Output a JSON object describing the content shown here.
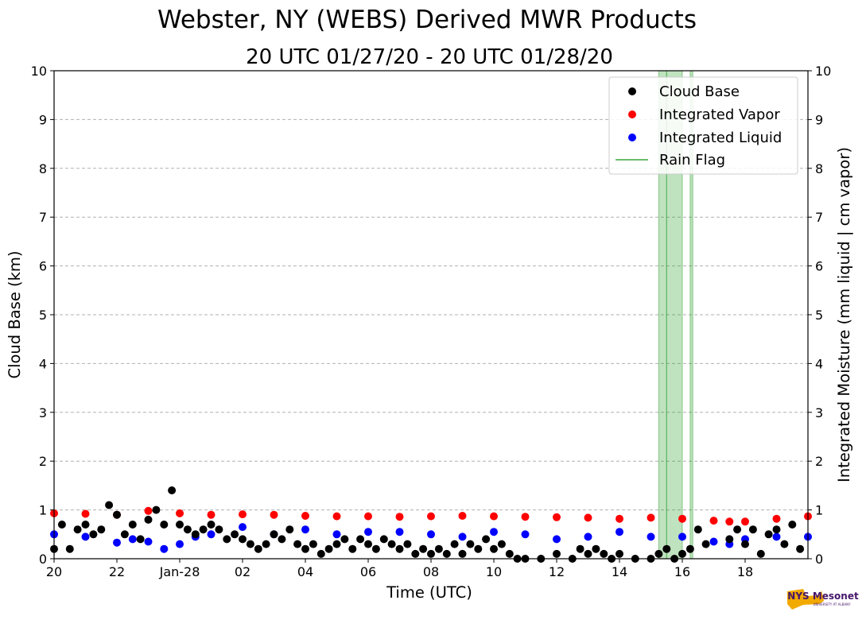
{
  "chart_data": {
    "type": "scatter",
    "title": "Webster, NY (WEBS) Derived MWR Products",
    "subtitle": "20 UTC 01/27/20 - 20 UTC 01/28/20",
    "xlabel": "Time (UTC)",
    "ylabel_left": "Cloud Base (km)",
    "ylabel_right": "Integrated Moisture (mm liquid | cm vapor)",
    "x_range_hours_after_20utc_jan27": [
      0,
      24
    ],
    "xlim": [
      "2020-01-27 20:00 UTC",
      "2020-01-28 20:00 UTC"
    ],
    "ylim": [
      0,
      10
    ],
    "y_ticks": [
      "0",
      "1",
      "2",
      "3",
      "4",
      "5",
      "6",
      "7",
      "8",
      "9",
      "10"
    ],
    "x_ticks": [
      {
        "label": "20",
        "time": "2020-01-27 20:00"
      },
      {
        "label": "22",
        "time": "2020-01-27 22:00"
      },
      {
        "label": "Jan-28",
        "time": "2020-01-28 00:00"
      },
      {
        "label": "02",
        "time": "2020-01-28 02:00"
      },
      {
        "label": "04",
        "time": "2020-01-28 04:00"
      },
      {
        "label": "06",
        "time": "2020-01-28 06:00"
      },
      {
        "label": "08",
        "time": "2020-01-28 08:00"
      },
      {
        "label": "10",
        "time": "2020-01-28 10:00"
      },
      {
        "label": "12",
        "time": "2020-01-28 12:00"
      },
      {
        "label": "14",
        "time": "2020-01-28 14:00"
      },
      {
        "label": "16",
        "time": "2020-01-28 16:00"
      },
      {
        "label": "18",
        "time": "2020-01-28 18:00"
      }
    ],
    "grid": "horizontal dashed",
    "legend_placement": "top-right",
    "series": [
      {
        "name": "Cloud Base",
        "color": "#000000",
        "marker": "dot",
        "points": [
          [
            "2020-01-27 20:00",
            0.2
          ],
          [
            "2020-01-27 20:15",
            0.7
          ],
          [
            "2020-01-27 20:30",
            0.2
          ],
          [
            "2020-01-27 20:45",
            0.6
          ],
          [
            "2020-01-27 21:00",
            0.7
          ],
          [
            "2020-01-27 21:15",
            0.5
          ],
          [
            "2020-01-27 21:30",
            0.6
          ],
          [
            "2020-01-27 21:45",
            1.1
          ],
          [
            "2020-01-27 22:00",
            0.9
          ],
          [
            "2020-01-27 22:15",
            0.5
          ],
          [
            "2020-01-27 22:30",
            0.7
          ],
          [
            "2020-01-27 22:45",
            0.4
          ],
          [
            "2020-01-27 23:00",
            0.8
          ],
          [
            "2020-01-27 23:15",
            1.0
          ],
          [
            "2020-01-27 23:30",
            0.7
          ],
          [
            "2020-01-27 23:45",
            1.4
          ],
          [
            "2020-01-28 00:00",
            0.7
          ],
          [
            "2020-01-28 00:15",
            0.6
          ],
          [
            "2020-01-28 00:30",
            0.5
          ],
          [
            "2020-01-28 00:45",
            0.6
          ],
          [
            "2020-01-28 01:00",
            0.7
          ],
          [
            "2020-01-28 01:15",
            0.6
          ],
          [
            "2020-01-28 01:30",
            0.4
          ],
          [
            "2020-01-28 01:45",
            0.5
          ],
          [
            "2020-01-28 02:00",
            0.4
          ],
          [
            "2020-01-28 02:15",
            0.3
          ],
          [
            "2020-01-28 02:30",
            0.2
          ],
          [
            "2020-01-28 02:45",
            0.3
          ],
          [
            "2020-01-28 03:00",
            0.5
          ],
          [
            "2020-01-28 03:15",
            0.4
          ],
          [
            "2020-01-28 03:30",
            0.6
          ],
          [
            "2020-01-28 03:45",
            0.3
          ],
          [
            "2020-01-28 04:00",
            0.2
          ],
          [
            "2020-01-28 04:15",
            0.3
          ],
          [
            "2020-01-28 04:30",
            0.1
          ],
          [
            "2020-01-28 04:45",
            0.2
          ],
          [
            "2020-01-28 05:00",
            0.3
          ],
          [
            "2020-01-28 05:15",
            0.4
          ],
          [
            "2020-01-28 05:30",
            0.2
          ],
          [
            "2020-01-28 05:45",
            0.4
          ],
          [
            "2020-01-28 06:00",
            0.3
          ],
          [
            "2020-01-28 06:15",
            0.2
          ],
          [
            "2020-01-28 06:30",
            0.4
          ],
          [
            "2020-01-28 06:45",
            0.3
          ],
          [
            "2020-01-28 07:00",
            0.2
          ],
          [
            "2020-01-28 07:15",
            0.3
          ],
          [
            "2020-01-28 07:30",
            0.1
          ],
          [
            "2020-01-28 07:45",
            0.2
          ],
          [
            "2020-01-28 08:00",
            0.1
          ],
          [
            "2020-01-28 08:15",
            0.2
          ],
          [
            "2020-01-28 08:30",
            0.1
          ],
          [
            "2020-01-28 08:45",
            0.3
          ],
          [
            "2020-01-28 09:00",
            0.1
          ],
          [
            "2020-01-28 09:15",
            0.3
          ],
          [
            "2020-01-28 09:30",
            0.2
          ],
          [
            "2020-01-28 09:45",
            0.4
          ],
          [
            "2020-01-28 10:00",
            0.2
          ],
          [
            "2020-01-28 10:15",
            0.3
          ],
          [
            "2020-01-28 10:30",
            0.1
          ],
          [
            "2020-01-28 10:45",
            0.0
          ],
          [
            "2020-01-28 11:00",
            0.0
          ],
          [
            "2020-01-28 11:30",
            0.0
          ],
          [
            "2020-01-28 12:00",
            0.1
          ],
          [
            "2020-01-28 12:30",
            0.0
          ],
          [
            "2020-01-28 12:45",
            0.2
          ],
          [
            "2020-01-28 13:00",
            0.1
          ],
          [
            "2020-01-28 13:15",
            0.2
          ],
          [
            "2020-01-28 13:30",
            0.1
          ],
          [
            "2020-01-28 13:45",
            0.0
          ],
          [
            "2020-01-28 14:00",
            0.1
          ],
          [
            "2020-01-28 14:30",
            0.0
          ],
          [
            "2020-01-28 15:00",
            0.0
          ],
          [
            "2020-01-28 15:15",
            0.1
          ],
          [
            "2020-01-28 15:30",
            0.2
          ],
          [
            "2020-01-28 15:45",
            0.0
          ],
          [
            "2020-01-28 16:00",
            0.1
          ],
          [
            "2020-01-28 16:15",
            0.2
          ],
          [
            "2020-01-28 16:30",
            0.6
          ],
          [
            "2020-01-28 16:45",
            0.3
          ],
          [
            "2020-01-28 17:30",
            0.4
          ],
          [
            "2020-01-28 17:45",
            0.6
          ],
          [
            "2020-01-28 18:00",
            0.3
          ],
          [
            "2020-01-28 18:15",
            0.6
          ],
          [
            "2020-01-28 18:30",
            0.1
          ],
          [
            "2020-01-28 18:45",
            0.5
          ],
          [
            "2020-01-28 19:00",
            0.6
          ],
          [
            "2020-01-28 19:15",
            0.3
          ],
          [
            "2020-01-28 19:30",
            0.7
          ],
          [
            "2020-01-28 19:45",
            0.2
          ]
        ]
      },
      {
        "name": "Integrated Vapor",
        "color": "#ff0000",
        "marker": "dot",
        "points": [
          [
            "2020-01-27 20:00",
            0.93
          ],
          [
            "2020-01-27 21:00",
            0.92
          ],
          [
            "2020-01-27 22:00",
            0.9
          ],
          [
            "2020-01-27 23:00",
            0.98
          ],
          [
            "2020-01-28 00:00",
            0.93
          ],
          [
            "2020-01-28 01:00",
            0.9
          ],
          [
            "2020-01-28 02:00",
            0.91
          ],
          [
            "2020-01-28 03:00",
            0.9
          ],
          [
            "2020-01-28 04:00",
            0.88
          ],
          [
            "2020-01-28 05:00",
            0.87
          ],
          [
            "2020-01-28 06:00",
            0.87
          ],
          [
            "2020-01-28 07:00",
            0.86
          ],
          [
            "2020-01-28 08:00",
            0.87
          ],
          [
            "2020-01-28 09:00",
            0.88
          ],
          [
            "2020-01-28 10:00",
            0.87
          ],
          [
            "2020-01-28 11:00",
            0.86
          ],
          [
            "2020-01-28 12:00",
            0.85
          ],
          [
            "2020-01-28 13:00",
            0.84
          ],
          [
            "2020-01-28 14:00",
            0.82
          ],
          [
            "2020-01-28 15:00",
            0.84
          ],
          [
            "2020-01-28 16:00",
            0.82
          ],
          [
            "2020-01-28 17:00",
            0.78
          ],
          [
            "2020-01-28 17:30",
            0.76
          ],
          [
            "2020-01-28 18:00",
            0.76
          ],
          [
            "2020-01-28 19:00",
            0.82
          ],
          [
            "2020-01-28 20:00",
            0.87
          ]
        ]
      },
      {
        "name": "Integrated Liquid",
        "color": "#0000ff",
        "marker": "dot",
        "points": [
          [
            "2020-01-27 20:00",
            0.5
          ],
          [
            "2020-01-27 21:00",
            0.45
          ],
          [
            "2020-01-27 22:00",
            0.33
          ],
          [
            "2020-01-27 22:30",
            0.4
          ],
          [
            "2020-01-27 23:00",
            0.35
          ],
          [
            "2020-01-27 23:30",
            0.2
          ],
          [
            "2020-01-28 00:00",
            0.3
          ],
          [
            "2020-01-28 00:30",
            0.45
          ],
          [
            "2020-01-28 01:00",
            0.5
          ],
          [
            "2020-01-28 02:00",
            0.65
          ],
          [
            "2020-01-28 03:00",
            0.5
          ],
          [
            "2020-01-28 04:00",
            0.6
          ],
          [
            "2020-01-28 05:00",
            0.5
          ],
          [
            "2020-01-28 06:00",
            0.55
          ],
          [
            "2020-01-28 07:00",
            0.55
          ],
          [
            "2020-01-28 08:00",
            0.5
          ],
          [
            "2020-01-28 09:00",
            0.45
          ],
          [
            "2020-01-28 10:00",
            0.55
          ],
          [
            "2020-01-28 11:00",
            0.5
          ],
          [
            "2020-01-28 12:00",
            0.4
          ],
          [
            "2020-01-28 13:00",
            0.45
          ],
          [
            "2020-01-28 14:00",
            0.55
          ],
          [
            "2020-01-28 15:00",
            0.45
          ],
          [
            "2020-01-28 16:00",
            0.45
          ],
          [
            "2020-01-28 17:00",
            0.35
          ],
          [
            "2020-01-28 17:30",
            0.3
          ],
          [
            "2020-01-28 18:00",
            0.4
          ],
          [
            "2020-01-28 19:00",
            0.45
          ],
          [
            "2020-01-28 20:00",
            0.45
          ]
        ]
      }
    ],
    "rain_flag": {
      "name": "Rain Flag",
      "color": "#2ca02c",
      "intervals": [
        [
          "2020-01-28 15:15",
          "2020-01-28 15:30"
        ],
        [
          "2020-01-28 15:30",
          "2020-01-28 16:00"
        ],
        [
          "2020-01-28 16:15",
          "2020-01-28 16:20"
        ]
      ]
    }
  },
  "logo": {
    "text": "NYS Mesonet",
    "subtext": "UNIVERSITY AT ALBANY",
    "state_color": "#f2a900",
    "text_color": "#46166b"
  }
}
